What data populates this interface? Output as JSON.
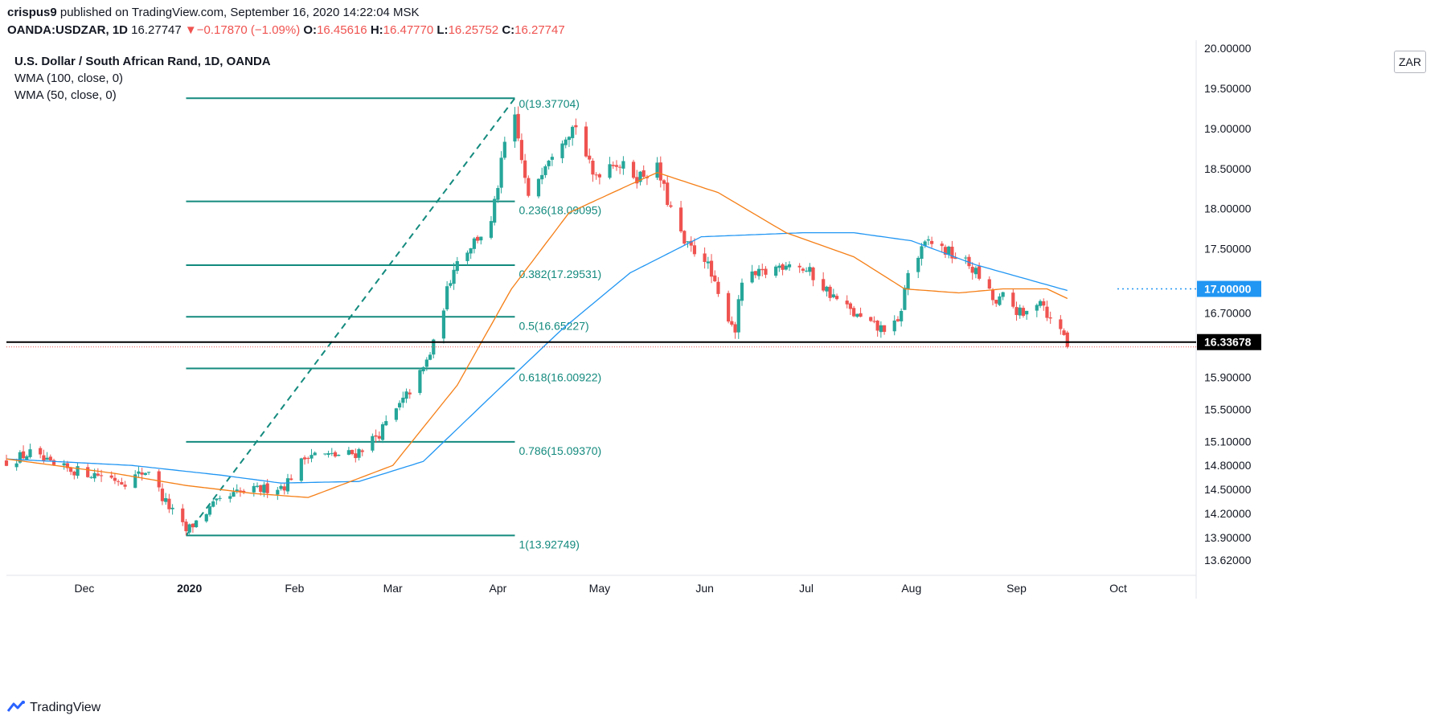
{
  "header": {
    "published_user": "crispus9",
    "published_text": " published on TradingView.com, September 16, 2020 14:22:04 MSK",
    "symbol": "OANDA:USDZAR, 1D",
    "last": "16.27747",
    "change_arrow": "▼",
    "change": "−0.17870 (−1.09%)",
    "o_label": "O:",
    "o_value": "16.45616",
    "h_label": "H:",
    "h_value": "16.47770",
    "l_label": "L:",
    "l_value": "16.25752",
    "c_label": "C:",
    "c_value": "16.27747"
  },
  "legend": {
    "title": "U.S. Dollar / South African Rand, 1D, OANDA",
    "wma100": "WMA (100, close, 0)",
    "wma50": "WMA (50, close, 0)"
  },
  "currency_button": "ZAR",
  "footer": {
    "brand": "TradingView"
  },
  "colors": {
    "up": "#26a69a",
    "down": "#ef5350",
    "fib": "#138a7e",
    "wma100": "#2196f3",
    "wma50": "#f57f17",
    "axis_text": "#131722",
    "grid_border": "#e0e3eb"
  },
  "chart_data": {
    "type": "candlestick",
    "x_tick_labels": [
      "Dec",
      "2020",
      "Feb",
      "Mar",
      "Apr",
      "May",
      "Jun",
      "Jul",
      "Aug",
      "Sep",
      "Oct"
    ],
    "x_tick_dates": [
      "2019-12-01",
      "2020-01-01",
      "2020-02-01",
      "2020-03-01",
      "2020-04-01",
      "2020-05-01",
      "2020-06-01",
      "2020-07-01",
      "2020-08-01",
      "2020-09-01",
      "2020-10-01"
    ],
    "x_range": [
      "2019-11-08",
      "2020-10-24"
    ],
    "y_tick_labels": [
      "13.62000",
      "13.90000",
      "14.20000",
      "14.50000",
      "14.80000",
      "15.10000",
      "15.50000",
      "15.90000",
      "16.70000",
      "17.00000",
      "17.50000",
      "18.00000",
      "18.50000",
      "19.00000",
      "19.50000",
      "20.00000"
    ],
    "y_ticks": [
      13.62,
      13.9,
      14.2,
      14.5,
      14.8,
      15.1,
      15.5,
      15.9,
      16.7,
      17.0,
      17.5,
      18.0,
      18.5,
      19.0,
      19.5,
      20.0
    ],
    "y_range": [
      13.43,
      20.1
    ],
    "price_marks": [
      {
        "label": "17.00000",
        "value": 17.0,
        "style": "dotted-blue"
      },
      {
        "label": "16.33678",
        "value": 16.337,
        "style": "solid-black"
      }
    ],
    "support_line": 16.337,
    "last_price_line": 16.277,
    "fib": {
      "from": {
        "date": "2019-12-31",
        "price": 13.92749
      },
      "to": {
        "date": "2020-04-06",
        "price": 19.37704
      },
      "levels": [
        {
          "label": "0(19.37704)",
          "value": 19.37704
        },
        {
          "label": "0.236(18.09095)",
          "value": 18.09095
        },
        {
          "label": "0.382(17.29531)",
          "value": 17.29531
        },
        {
          "label": "0.5(16.65227)",
          "value": 16.65227
        },
        {
          "label": "0.618(16.00922)",
          "value": 16.00922
        },
        {
          "label": "0.786(15.09370)",
          "value": 15.0937
        },
        {
          "label": "1(13.92749)",
          "value": 13.92749
        }
      ]
    },
    "close_anchors": [
      [
        "2019-11-08",
        14.85
      ],
      [
        "2019-11-15",
        14.95
      ],
      [
        "2019-11-22",
        14.78
      ],
      [
        "2019-11-29",
        14.73
      ],
      [
        "2019-12-06",
        14.68
      ],
      [
        "2019-12-13",
        14.6
      ],
      [
        "2019-12-20",
        14.75
      ],
      [
        "2019-12-24",
        14.4
      ],
      [
        "2019-12-31",
        13.98
      ],
      [
        "2020-01-08",
        14.3
      ],
      [
        "2020-01-15",
        14.45
      ],
      [
        "2020-01-22",
        14.5
      ],
      [
        "2020-01-29",
        14.55
      ],
      [
        "2020-02-05",
        14.95
      ],
      [
        "2020-02-12",
        14.92
      ],
      [
        "2020-02-19",
        14.95
      ],
      [
        "2020-02-26",
        15.2
      ],
      [
        "2020-03-04",
        15.6
      ],
      [
        "2020-03-10",
        16.0
      ],
      [
        "2020-03-13",
        16.3
      ],
      [
        "2020-03-19",
        17.3
      ],
      [
        "2020-03-25",
        17.6
      ],
      [
        "2020-03-30",
        17.8
      ],
      [
        "2020-04-03",
        18.8
      ],
      [
        "2020-04-06",
        19.1
      ],
      [
        "2020-04-10",
        18.1
      ],
      [
        "2020-04-15",
        18.6
      ],
      [
        "2020-04-20",
        18.9
      ],
      [
        "2020-04-24",
        19.05
      ],
      [
        "2020-04-29",
        18.4
      ],
      [
        "2020-05-05",
        18.6
      ],
      [
        "2020-05-12",
        18.4
      ],
      [
        "2020-05-18",
        18.5
      ],
      [
        "2020-05-21",
        18.1
      ],
      [
        "2020-05-26",
        17.55
      ],
      [
        "2020-06-01",
        17.4
      ],
      [
        "2020-06-05",
        16.9
      ],
      [
        "2020-06-10",
        16.5
      ],
      [
        "2020-06-12",
        17.1
      ],
      [
        "2020-06-19",
        17.2
      ],
      [
        "2020-06-26",
        17.35
      ],
      [
        "2020-07-02",
        17.2
      ],
      [
        "2020-07-09",
        16.9
      ],
      [
        "2020-07-16",
        16.65
      ],
      [
        "2020-07-22",
        16.5
      ],
      [
        "2020-07-28",
        16.55
      ],
      [
        "2020-07-31",
        17.2
      ],
      [
        "2020-08-06",
        17.6
      ],
      [
        "2020-08-12",
        17.45
      ],
      [
        "2020-08-18",
        17.3
      ],
      [
        "2020-08-21",
        17.15
      ],
      [
        "2020-08-26",
        16.8
      ],
      [
        "2020-08-28",
        16.9
      ],
      [
        "2020-09-03",
        16.65
      ],
      [
        "2020-09-08",
        16.9
      ],
      [
        "2020-09-11",
        16.6
      ],
      [
        "2020-09-15",
        16.45
      ],
      [
        "2020-09-16",
        16.27747
      ]
    ],
    "wma100_anchors": [
      [
        "2019-11-08",
        14.88
      ],
      [
        "2019-12-15",
        14.8
      ],
      [
        "2020-01-10",
        14.68
      ],
      [
        "2020-01-28",
        14.58
      ],
      [
        "2020-02-20",
        14.6
      ],
      [
        "2020-03-10",
        14.85
      ],
      [
        "2020-03-31",
        15.7
      ],
      [
        "2020-04-20",
        16.5
      ],
      [
        "2020-05-10",
        17.2
      ],
      [
        "2020-05-31",
        17.65
      ],
      [
        "2020-06-30",
        17.7
      ],
      [
        "2020-07-15",
        17.7
      ],
      [
        "2020-08-01",
        17.6
      ],
      [
        "2020-08-20",
        17.3
      ],
      [
        "2020-09-16",
        16.98
      ]
    ],
    "wma50_anchors": [
      [
        "2019-11-08",
        14.88
      ],
      [
        "2019-12-10",
        14.7
      ],
      [
        "2019-12-31",
        14.55
      ],
      [
        "2020-01-20",
        14.45
      ],
      [
        "2020-02-05",
        14.4
      ],
      [
        "2020-03-01",
        14.8
      ],
      [
        "2020-03-20",
        15.8
      ],
      [
        "2020-04-05",
        17.0
      ],
      [
        "2020-04-22",
        17.95
      ],
      [
        "2020-05-10",
        18.3
      ],
      [
        "2020-05-18",
        18.45
      ],
      [
        "2020-06-05",
        18.2
      ],
      [
        "2020-06-25",
        17.7
      ],
      [
        "2020-07-15",
        17.4
      ],
      [
        "2020-07-30",
        17.0
      ],
      [
        "2020-08-15",
        16.95
      ],
      [
        "2020-08-28",
        17.0
      ],
      [
        "2020-09-10",
        17.0
      ],
      [
        "2020-09-16",
        16.88
      ]
    ]
  }
}
